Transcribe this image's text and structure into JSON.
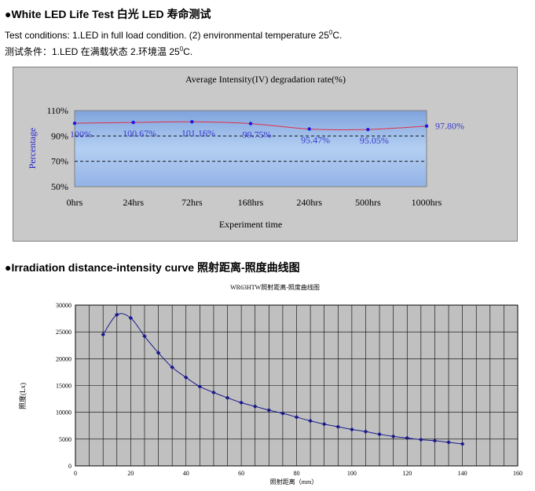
{
  "heading1": "●White LED Life Test  白光 LED 寿命测试",
  "conditions_en": {
    "pre": "Test conditions: 1.LED in full load condition. (2) environmental temperature 25",
    "sup": "0",
    "post": "C."
  },
  "conditions_cn": {
    "pre": "测试条件：1.LED 在满载状态   2.环境温 25",
    "sup": "0",
    "post": "C."
  },
  "heading2": "●Irradiation distance-intensity curve  照射距离-照度曲线图",
  "chart_data": [
    {
      "type": "line",
      "title": "Average Intensity(IV) degradation rate(%)",
      "xlabel": "Experiment time",
      "ylabel": "Percentage",
      "categories": [
        "0hrs",
        "24hrs",
        "72hrs",
        "168hrs",
        "240hrs",
        "500hrs",
        "1000hrs"
      ],
      "values": [
        100,
        100.67,
        101.16,
        99.75,
        95.47,
        95.05,
        97.8
      ],
      "data_labels": [
        "100%",
        "100.67%",
        "101.16%",
        "99.75%",
        "95.47%",
        "95.05%",
        "97.80%"
      ],
      "yticks": [
        "110%",
        "90%",
        "70%",
        "50%"
      ],
      "ylim": [
        50,
        110
      ],
      "reference_lines": [
        90,
        70
      ],
      "colors": {
        "line": "#e0304a",
        "marker": "#1a1ae0",
        "label": "#3a3ad0",
        "plot_bg": "#a9c7ef",
        "panel_bg": "#c9c9c9"
      }
    },
    {
      "type": "line",
      "title": "WR63HTW照射距离-照度曲线图",
      "xlabel": "照射距离（mm）",
      "ylabel": "照度(Lx)",
      "x": [
        10,
        15,
        20,
        25,
        30,
        35,
        40,
        45,
        50,
        55,
        60,
        65,
        70,
        75,
        80,
        85,
        90,
        95,
        100,
        105,
        110,
        115,
        120,
        125,
        130,
        135,
        140
      ],
      "y": [
        24500,
        28200,
        27600,
        24200,
        21100,
        18400,
        16500,
        14800,
        13700,
        12700,
        11800,
        11100,
        10400,
        9800,
        9100,
        8400,
        7800,
        7300,
        6800,
        6400,
        5900,
        5500,
        5200,
        4900,
        4700,
        4400,
        4100
      ],
      "xticks": [
        "0",
        "20",
        "40",
        "60",
        "80",
        "100",
        "120",
        "140",
        "160"
      ],
      "yticks": [
        "0",
        "5000",
        "10000",
        "15000",
        "20000",
        "25000",
        "30000"
      ],
      "xlim": [
        0,
        160
      ],
      "ylim": [
        0,
        30000
      ],
      "colors": {
        "line": "#1a1a8a",
        "plot_bg": "#c0c0c0",
        "grid": "#000000"
      }
    }
  ]
}
